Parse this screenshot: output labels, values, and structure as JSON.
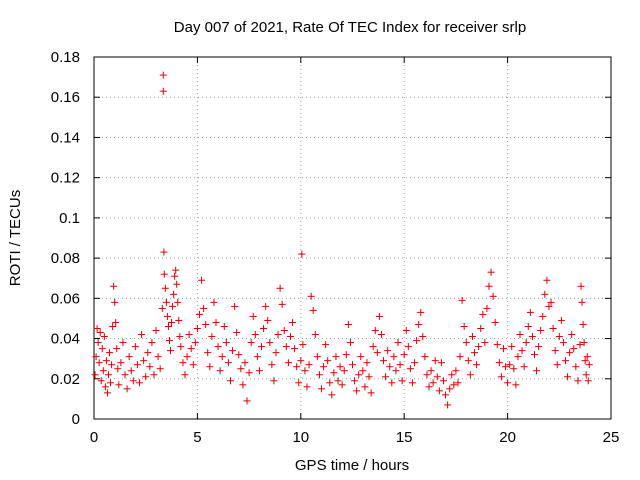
{
  "chart_data": {
    "type": "scatter",
    "title": "Day 007 of 2021, Rate Of TEC Index for receiver srlp",
    "xlabel": "GPS time / hours",
    "ylabel": "ROTI / TECUs",
    "xlim": [
      0,
      25
    ],
    "ylim": [
      0,
      0.18
    ],
    "xticks": [
      0,
      5,
      10,
      15,
      20,
      25
    ],
    "xtick_labels": [
      "0",
      "5",
      "10",
      "15",
      "20",
      "25"
    ],
    "yticks": [
      0,
      0.02,
      0.04,
      0.06,
      0.08,
      0.1,
      0.12,
      0.14,
      0.16,
      0.18
    ],
    "ytick_labels": [
      "0",
      "0.02",
      "0.04",
      "0.06",
      "0.08",
      "0.1",
      "0.12",
      "0.14",
      "0.16",
      "0.18"
    ],
    "grid": true,
    "marker": "+",
    "marker_color": "#e00000",
    "series": [
      {
        "name": "ROTI",
        "points": [
          [
            0.05,
            0.022
          ],
          [
            0.1,
            0.031
          ],
          [
            0.15,
            0.045
          ],
          [
            0.2,
            0.038
          ],
          [
            0.25,
            0.028
          ],
          [
            0.3,
            0.043
          ],
          [
            0.35,
            0.019
          ],
          [
            0.4,
            0.035
          ],
          [
            0.45,
            0.024
          ],
          [
            0.5,
            0.041
          ],
          [
            0.55,
            0.016
          ],
          [
            0.6,
            0.029
          ],
          [
            0.65,
            0.013
          ],
          [
            0.7,
            0.022
          ],
          [
            0.75,
            0.033
          ],
          [
            0.8,
            0.018
          ],
          [
            0.85,
            0.027
          ],
          [
            0.9,
            0.046
          ],
          [
            0.95,
            0.066
          ],
          [
            1.0,
            0.058
          ],
          [
            1.05,
            0.048
          ],
          [
            1.1,
            0.035
          ],
          [
            1.15,
            0.025
          ],
          [
            1.2,
            0.017
          ],
          [
            1.3,
            0.028
          ],
          [
            1.4,
            0.038
          ],
          [
            1.5,
            0.022
          ],
          [
            1.6,
            0.015
          ],
          [
            1.7,
            0.031
          ],
          [
            1.8,
            0.024
          ],
          [
            1.9,
            0.019
          ],
          [
            2.0,
            0.036
          ],
          [
            2.1,
            0.027
          ],
          [
            2.2,
            0.018
          ],
          [
            2.3,
            0.042
          ],
          [
            2.4,
            0.029
          ],
          [
            2.5,
            0.021
          ],
          [
            2.6,
            0.033
          ],
          [
            2.7,
            0.026
          ],
          [
            2.8,
            0.038
          ],
          [
            2.9,
            0.022
          ],
          [
            3.0,
            0.044
          ],
          [
            3.1,
            0.031
          ],
          [
            3.2,
            0.025
          ],
          [
            3.3,
            0.055
          ],
          [
            3.35,
            0.171
          ],
          [
            3.35,
            0.163
          ],
          [
            3.38,
            0.083
          ],
          [
            3.4,
            0.072
          ],
          [
            3.45,
            0.065
          ],
          [
            3.5,
            0.058
          ],
          [
            3.55,
            0.051
          ],
          [
            3.6,
            0.046
          ],
          [
            3.65,
            0.039
          ],
          [
            3.7,
            0.034
          ],
          [
            3.75,
            0.048
          ],
          [
            3.8,
            0.056
          ],
          [
            3.85,
            0.062
          ],
          [
            3.9,
            0.071
          ],
          [
            3.95,
            0.074
          ],
          [
            4.0,
            0.067
          ],
          [
            4.05,
            0.058
          ],
          [
            4.1,
            0.049
          ],
          [
            4.15,
            0.041
          ],
          [
            4.2,
            0.036
          ],
          [
            4.3,
            0.028
          ],
          [
            4.4,
            0.022
          ],
          [
            4.5,
            0.031
          ],
          [
            4.6,
            0.042
          ],
          [
            4.7,
            0.035
          ],
          [
            4.8,
            0.027
          ],
          [
            4.9,
            0.038
          ],
          [
            5.0,
            0.045
          ],
          [
            5.1,
            0.052
          ],
          [
            5.2,
            0.069
          ],
          [
            5.3,
            0.055
          ],
          [
            5.4,
            0.047
          ],
          [
            5.5,
            0.033
          ],
          [
            5.6,
            0.026
          ],
          [
            5.7,
            0.041
          ],
          [
            5.8,
            0.058
          ],
          [
            5.9,
            0.048
          ],
          [
            6.0,
            0.036
          ],
          [
            6.1,
            0.024
          ],
          [
            6.2,
            0.031
          ],
          [
            6.3,
            0.046
          ],
          [
            6.4,
            0.038
          ],
          [
            6.5,
            0.028
          ],
          [
            6.6,
            0.019
          ],
          [
            6.7,
            0.034
          ],
          [
            6.8,
            0.056
          ],
          [
            6.9,
            0.043
          ],
          [
            7.0,
            0.032
          ],
          [
            7.1,
            0.025
          ],
          [
            7.2,
            0.017
          ],
          [
            7.3,
            0.028
          ],
          [
            7.4,
            0.009
          ],
          [
            7.5,
            0.023
          ],
          [
            7.6,
            0.038
          ],
          [
            7.7,
            0.051
          ],
          [
            7.8,
            0.042
          ],
          [
            7.9,
            0.031
          ],
          [
            8.0,
            0.024
          ],
          [
            8.1,
            0.036
          ],
          [
            8.2,
            0.045
          ],
          [
            8.3,
            0.056
          ],
          [
            8.4,
            0.049
          ],
          [
            8.5,
            0.038
          ],
          [
            8.6,
            0.027
          ],
          [
            8.7,
            0.019
          ],
          [
            8.8,
            0.033
          ],
          [
            8.9,
            0.042
          ],
          [
            9.0,
            0.065
          ],
          [
            9.1,
            0.057
          ],
          [
            9.2,
            0.044
          ],
          [
            9.3,
            0.036
          ],
          [
            9.4,
            0.028
          ],
          [
            9.5,
            0.041
          ],
          [
            9.6,
            0.048
          ],
          [
            9.7,
            0.035
          ],
          [
            9.8,
            0.026
          ],
          [
            9.9,
            0.018
          ],
          [
            10.0,
            0.029
          ],
          [
            10.05,
            0.082
          ],
          [
            10.1,
            0.037
          ],
          [
            10.2,
            0.024
          ],
          [
            10.3,
            0.016
          ],
          [
            10.4,
            0.027
          ],
          [
            10.5,
            0.061
          ],
          [
            10.6,
            0.054
          ],
          [
            10.7,
            0.042
          ],
          [
            10.8,
            0.031
          ],
          [
            10.9,
            0.022
          ],
          [
            11.0,
            0.015
          ],
          [
            11.1,
            0.026
          ],
          [
            11.2,
            0.037
          ],
          [
            11.3,
            0.029
          ],
          [
            11.4,
            0.018
          ],
          [
            11.5,
            0.012
          ],
          [
            11.6,
            0.023
          ],
          [
            11.7,
            0.031
          ],
          [
            11.8,
            0.019
          ],
          [
            11.9,
            0.026
          ],
          [
            12.0,
            0.017
          ],
          [
            12.1,
            0.024
          ],
          [
            12.2,
            0.032
          ],
          [
            12.3,
            0.047
          ],
          [
            12.4,
            0.038
          ],
          [
            12.5,
            0.027
          ],
          [
            12.6,
            0.019
          ],
          [
            12.7,
            0.014
          ],
          [
            12.8,
            0.022
          ],
          [
            12.9,
            0.031
          ],
          [
            13.0,
            0.024
          ],
          [
            13.1,
            0.016
          ],
          [
            13.2,
            0.028
          ],
          [
            13.3,
            0.021
          ],
          [
            13.4,
            0.013
          ],
          [
            13.5,
            0.036
          ],
          [
            13.6,
            0.044
          ],
          [
            13.7,
            0.033
          ],
          [
            13.8,
            0.051
          ],
          [
            13.9,
            0.042
          ],
          [
            14.0,
            0.029
          ],
          [
            14.1,
            0.021
          ],
          [
            14.2,
            0.034
          ],
          [
            14.3,
            0.026
          ],
          [
            14.4,
            0.018
          ],
          [
            14.5,
            0.031
          ],
          [
            14.6,
            0.024
          ],
          [
            14.7,
            0.038
          ],
          [
            14.8,
            0.027
          ],
          [
            14.9,
            0.019
          ],
          [
            15.0,
            0.032
          ],
          [
            15.1,
            0.044
          ],
          [
            15.2,
            0.036
          ],
          [
            15.3,
            0.025
          ],
          [
            15.4,
            0.018
          ],
          [
            15.5,
            0.028
          ],
          [
            15.6,
            0.039
          ],
          [
            15.7,
            0.047
          ],
          [
            15.8,
            0.053
          ],
          [
            15.9,
            0.041
          ],
          [
            16.0,
            0.031
          ],
          [
            16.1,
            0.022
          ],
          [
            16.2,
            0.016
          ],
          [
            16.3,
            0.024
          ],
          [
            16.4,
            0.018
          ],
          [
            16.5,
            0.029
          ],
          [
            16.6,
            0.021
          ],
          [
            16.7,
            0.014
          ],
          [
            16.8,
            0.028
          ],
          [
            16.9,
            0.019
          ],
          [
            17.0,
            0.012
          ],
          [
            17.1,
            0.007
          ],
          [
            17.2,
            0.015
          ],
          [
            17.3,
            0.022
          ],
          [
            17.4,
            0.017
          ],
          [
            17.5,
            0.024
          ],
          [
            17.6,
            0.018
          ],
          [
            17.7,
            0.031
          ],
          [
            17.8,
            0.059
          ],
          [
            17.9,
            0.046
          ],
          [
            18.0,
            0.038
          ],
          [
            18.1,
            0.029
          ],
          [
            18.2,
            0.022
          ],
          [
            18.3,
            0.041
          ],
          [
            18.4,
            0.033
          ],
          [
            18.5,
            0.027
          ],
          [
            18.6,
            0.036
          ],
          [
            18.7,
            0.045
          ],
          [
            18.8,
            0.052
          ],
          [
            18.9,
            0.038
          ],
          [
            19.0,
            0.055
          ],
          [
            19.1,
            0.066
          ],
          [
            19.2,
            0.073
          ],
          [
            19.3,
            0.061
          ],
          [
            19.4,
            0.048
          ],
          [
            19.5,
            0.037
          ],
          [
            19.6,
            0.028
          ],
          [
            19.7,
            0.021
          ],
          [
            19.8,
            0.035
          ],
          [
            19.9,
            0.026
          ],
          [
            20.0,
            0.018
          ],
          [
            20.1,
            0.027
          ],
          [
            20.2,
            0.036
          ],
          [
            20.3,
            0.025
          ],
          [
            20.4,
            0.017
          ],
          [
            20.5,
            0.031
          ],
          [
            20.6,
            0.042
          ],
          [
            20.7,
            0.034
          ],
          [
            20.8,
            0.026
          ],
          [
            20.9,
            0.038
          ],
          [
            21.0,
            0.046
          ],
          [
            21.1,
            0.053
          ],
          [
            21.2,
            0.041
          ],
          [
            21.3,
            0.032
          ],
          [
            21.4,
            0.024
          ],
          [
            21.5,
            0.036
          ],
          [
            21.6,
            0.044
          ],
          [
            21.7,
            0.051
          ],
          [
            21.8,
            0.062
          ],
          [
            21.9,
            0.069
          ],
          [
            22.0,
            0.056
          ],
          [
            22.1,
            0.058
          ],
          [
            22.2,
            0.045
          ],
          [
            22.3,
            0.034
          ],
          [
            22.4,
            0.027
          ],
          [
            22.5,
            0.041
          ],
          [
            22.6,
            0.049
          ],
          [
            22.7,
            0.038
          ],
          [
            22.8,
            0.029
          ],
          [
            22.9,
            0.021
          ],
          [
            23.0,
            0.033
          ],
          [
            23.1,
            0.042
          ],
          [
            23.2,
            0.035
          ],
          [
            23.3,
            0.026
          ],
          [
            23.4,
            0.019
          ],
          [
            23.5,
            0.037
          ],
          [
            23.55,
            0.066
          ],
          [
            23.6,
            0.058
          ],
          [
            23.65,
            0.047
          ],
          [
            23.7,
            0.038
          ],
          [
            23.75,
            0.029
          ],
          [
            23.8,
            0.022
          ],
          [
            23.85,
            0.031
          ],
          [
            23.9,
            0.019
          ],
          [
            23.95,
            0.027
          ]
        ]
      }
    ]
  }
}
